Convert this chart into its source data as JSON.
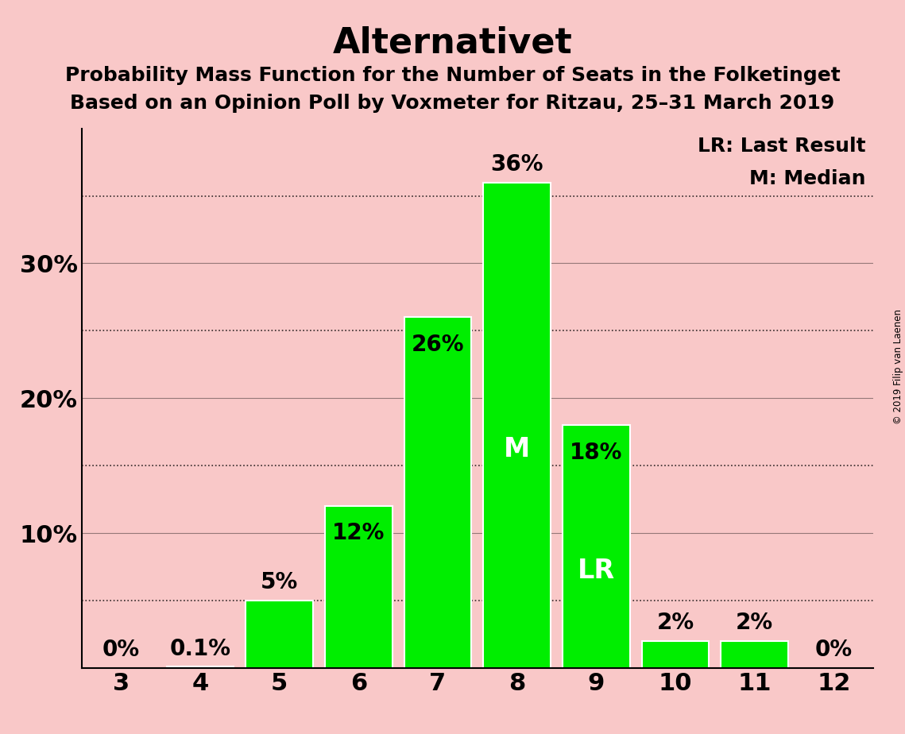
{
  "title": "Alternativet",
  "subtitle1": "Probability Mass Function for the Number of Seats in the Folketinget",
  "subtitle2": "Based on an Opinion Poll by Voxmeter for Ritzau, 25–31 March 2019",
  "copyright": "© 2019 Filip van Laenen",
  "categories": [
    3,
    4,
    5,
    6,
    7,
    8,
    9,
    10,
    11,
    12
  ],
  "values": [
    0.0,
    0.1,
    5.0,
    12.0,
    26.0,
    36.0,
    18.0,
    2.0,
    2.0,
    0.0
  ],
  "bar_color": "#00ee00",
  "bar_edge_color": "#ffffff",
  "background_color": "#f9c8c8",
  "label_color_outside": "#000000",
  "label_color_inside": "#ffffff",
  "labels": [
    "0%",
    "0.1%",
    "5%",
    "12%",
    "26%",
    "36%",
    "18%",
    "2%",
    "2%",
    "0%"
  ],
  "median_seat": 8,
  "last_result_seat": 9,
  "median_label": "M",
  "last_result_label": "LR",
  "legend_lr": "LR: Last Result",
  "legend_m": "M: Median",
  "ylim": [
    0,
    40
  ],
  "title_fontsize": 32,
  "subtitle_fontsize": 18,
  "axis_label_fontsize": 22,
  "bar_label_fontsize": 20,
  "inside_label_fontsize": 24,
  "legend_fontsize": 18,
  "ytick_label_positions": [
    0,
    10,
    20,
    30
  ],
  "ytick_dotted_positions": [
    5,
    15,
    25,
    35
  ],
  "ytick_solid_positions": [
    10,
    20,
    30
  ]
}
